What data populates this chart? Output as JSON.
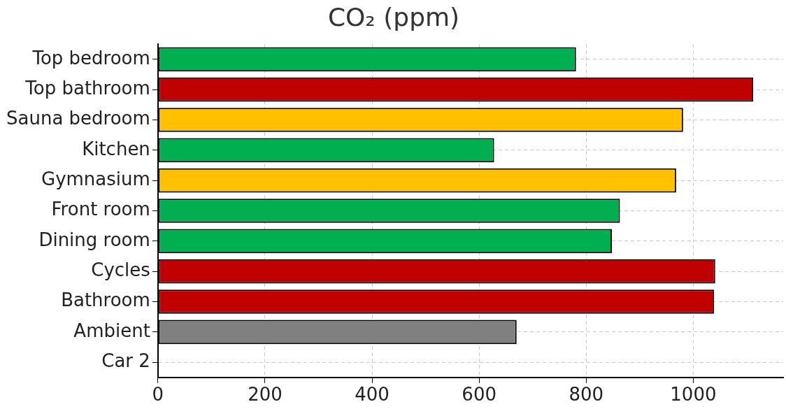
{
  "chart_data": {
    "type": "bar",
    "orientation": "horizontal",
    "title": "CO₂ (ppm)",
    "categories": [
      "Top bedroom",
      "Top bathroom",
      "Sauna bedroom",
      "Kitchen",
      "Gymnasium",
      "Front room",
      "Dining room",
      "Cycles",
      "Bathroom",
      "Ambient",
      "Car 2"
    ],
    "values": [
      781,
      1112,
      981,
      628,
      968,
      863,
      848,
      1041,
      1039,
      670,
      null
    ],
    "colors": [
      "#00b050",
      "#c00000",
      "#ffc000",
      "#00b050",
      "#ffc000",
      "#00b050",
      "#00b050",
      "#c00000",
      "#c00000",
      "#808080",
      null
    ],
    "xlim": [
      0,
      1168
    ],
    "xticks": [
      0,
      200,
      400,
      600,
      800,
      1000
    ],
    "grid": true,
    "line_style": "dashed"
  }
}
